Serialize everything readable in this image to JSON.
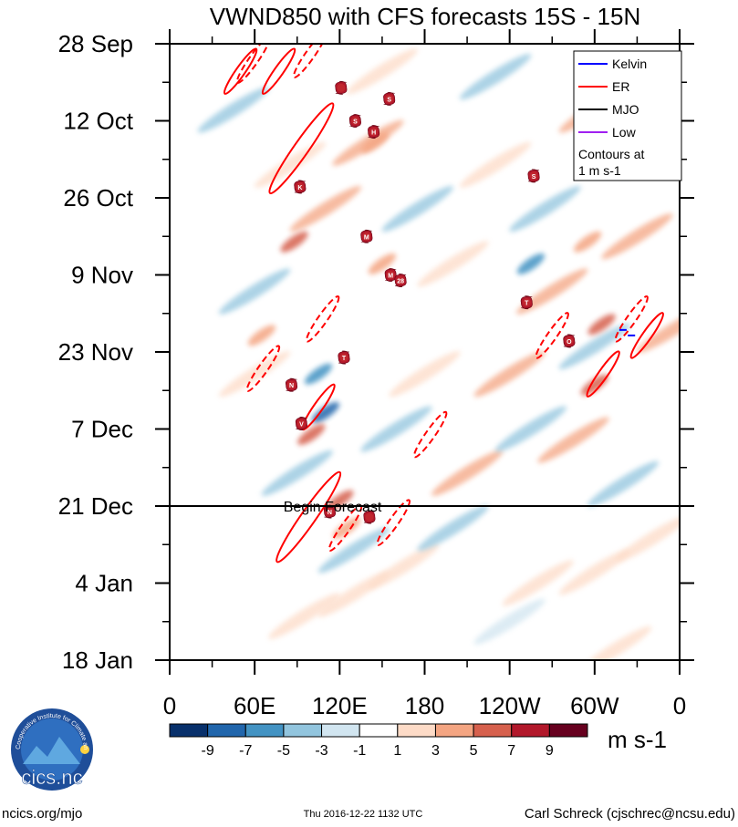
{
  "chart_data": {
    "type": "heatmap",
    "title": "VWND850 with CFS forecasts  15S - 15N",
    "x_tick_labels": [
      "0",
      "60E",
      "120E",
      "180",
      "120W",
      "60W",
      "0"
    ],
    "x_tick_values_deg": [
      0,
      60,
      120,
      180,
      240,
      300,
      360
    ],
    "xlim": [
      0,
      360
    ],
    "y_tick_labels": [
      "28 Sep",
      "12 Oct",
      "26 Oct",
      "9 Nov",
      "23 Nov",
      "7 Dec",
      "21 Dec",
      "4 Jan",
      "18 Jan"
    ],
    "y_tick_days": [
      0,
      14,
      28,
      42,
      56,
      70,
      84,
      98,
      112
    ],
    "ylim_days": [
      0,
      112
    ],
    "forecast_start_day": 84,
    "forecast_label": "Begin Forecast",
    "colorbar": {
      "unit": "m s-1",
      "tick_labels": [
        "-9",
        "-7",
        "-5",
        "-3",
        "-1",
        "1",
        "3",
        "5",
        "7",
        "9"
      ],
      "colors": [
        "#08306b",
        "#2166ac",
        "#4393c3",
        "#92c5de",
        "#d1e5f0",
        "#ffffff",
        "#fddbc7",
        "#f4a582",
        "#d6604d",
        "#b2182b",
        "#67001f"
      ]
    },
    "legend": {
      "items": [
        {
          "name": "Kelvin",
          "color": "#0000ff"
        },
        {
          "name": "ER",
          "color": "#ff0000"
        },
        {
          "name": "MJO",
          "color": "#000000"
        },
        {
          "name": "Low",
          "color": "#a020f0"
        }
      ],
      "note_line1": "Contours at",
      "note_line2": "1 m s-1"
    },
    "anomaly_streaks": [
      {
        "lon": 330,
        "day": 35,
        "value": 5
      },
      {
        "lon": 355,
        "day": 52,
        "value": 5
      },
      {
        "lon": 300,
        "day": 12,
        "value": 5
      },
      {
        "lon": 270,
        "day": 45,
        "value": 4
      },
      {
        "lon": 240,
        "day": 60,
        "value": 4
      },
      {
        "lon": 210,
        "day": 78,
        "value": 4
      },
      {
        "lon": 165,
        "day": 95,
        "value": 3
      },
      {
        "lon": 130,
        "day": 100,
        "value": 3
      },
      {
        "lon": 95,
        "day": 104,
        "value": 3
      },
      {
        "lon": 260,
        "day": 98,
        "value": 3
      },
      {
        "lon": 300,
        "day": 96,
        "value": 3
      },
      {
        "lon": 340,
        "day": 90,
        "value": 3
      },
      {
        "lon": 110,
        "day": 30,
        "value": 4
      },
      {
        "lon": 140,
        "day": 18,
        "value": 4
      },
      {
        "lon": 60,
        "day": 60,
        "value": 3
      },
      {
        "lon": 200,
        "day": 40,
        "value": 3
      },
      {
        "lon": 230,
        "day": 22,
        "value": 3
      },
      {
        "lon": 285,
        "day": 72,
        "value": 4
      },
      {
        "lon": 150,
        "day": 5,
        "value": 3
      },
      {
        "lon": 85,
        "day": 22,
        "value": 3
      },
      {
        "lon": 180,
        "day": 60,
        "value": 3
      },
      {
        "lon": 315,
        "day": 110,
        "value": 2
      },
      {
        "lon": 230,
        "day": 6,
        "value": -3
      },
      {
        "lon": 265,
        "day": 30,
        "value": -4
      },
      {
        "lon": 255,
        "day": 70,
        "value": -3
      },
      {
        "lon": 300,
        "day": 55,
        "value": -3
      },
      {
        "lon": 320,
        "day": 80,
        "value": -4
      },
      {
        "lon": 60,
        "day": 45,
        "value": -3
      },
      {
        "lon": 175,
        "day": 30,
        "value": -3
      },
      {
        "lon": 200,
        "day": 88,
        "value": -4
      },
      {
        "lon": 130,
        "day": 92,
        "value": -3
      },
      {
        "lon": 90,
        "day": 78,
        "value": -3
      },
      {
        "lon": 45,
        "day": 12,
        "value": -3
      },
      {
        "lon": 345,
        "day": 20,
        "value": -3
      },
      {
        "lon": 160,
        "day": 70,
        "value": -3
      },
      {
        "lon": 240,
        "day": 105,
        "value": -2
      }
    ],
    "strong_features": [
      {
        "lon": 110,
        "day": 67,
        "value": -7
      },
      {
        "lon": 105,
        "day": 60,
        "value": -5
      },
      {
        "lon": 100,
        "day": 71,
        "value": 7
      },
      {
        "lon": 120,
        "day": 83,
        "value": 7
      },
      {
        "lon": 125,
        "day": 88,
        "value": 5
      },
      {
        "lon": 88,
        "day": 36,
        "value": 7
      },
      {
        "lon": 150,
        "day": 40,
        "value": 5
      },
      {
        "lon": 145,
        "day": 18,
        "value": 5
      },
      {
        "lon": 300,
        "day": 62,
        "value": 7
      },
      {
        "lon": 305,
        "day": 51,
        "value": 7
      },
      {
        "lon": 295,
        "day": 36,
        "value": 5
      },
      {
        "lon": 255,
        "day": 40,
        "value": -5
      },
      {
        "lon": 65,
        "day": 53,
        "value": 5
      }
    ],
    "er_contours": [
      {
        "lon": 93,
        "day": 19,
        "dashed": false
      },
      {
        "lon": 105,
        "day": 66,
        "dashed": false
      },
      {
        "lon": 98,
        "day": 86,
        "dashed": false
      },
      {
        "lon": 306,
        "day": 60,
        "dashed": false
      },
      {
        "lon": 337,
        "day": 53,
        "dashed": false
      },
      {
        "lon": 50,
        "day": 5,
        "dashed": false
      },
      {
        "lon": 59,
        "day": 3,
        "dashed": true
      },
      {
        "lon": 77,
        "day": 5,
        "dashed": false
      },
      {
        "lon": 99,
        "day": 2,
        "dashed": true
      },
      {
        "lon": 108,
        "day": 50,
        "dashed": true
      },
      {
        "lon": 66,
        "day": 59,
        "dashed": true
      },
      {
        "lon": 124,
        "day": 88,
        "dashed": true
      },
      {
        "lon": 158,
        "day": 87,
        "dashed": true
      },
      {
        "lon": 184,
        "day": 71,
        "dashed": true
      },
      {
        "lon": 270,
        "day": 53,
        "dashed": true
      },
      {
        "lon": 326,
        "day": 50,
        "dashed": true
      }
    ],
    "kelvin_contours": [
      {
        "lon": 320,
        "day": 52
      },
      {
        "lon": 326,
        "day": 53
      }
    ],
    "cyclone_markers": [
      {
        "lon": 121,
        "day": 8,
        "code": ""
      },
      {
        "lon": 155,
        "day": 10,
        "code": "S"
      },
      {
        "lon": 131,
        "day": 14,
        "code": "S"
      },
      {
        "lon": 144,
        "day": 16,
        "code": "H"
      },
      {
        "lon": 92,
        "day": 26,
        "code": "K"
      },
      {
        "lon": 257,
        "day": 24,
        "code": "S"
      },
      {
        "lon": 139,
        "day": 35,
        "code": "M"
      },
      {
        "lon": 156,
        "day": 42,
        "code": "M"
      },
      {
        "lon": 163,
        "day": 43,
        "code": "28"
      },
      {
        "lon": 252,
        "day": 47,
        "code": "T"
      },
      {
        "lon": 282,
        "day": 54,
        "code": "O"
      },
      {
        "lon": 123,
        "day": 57,
        "code": "T"
      },
      {
        "lon": 86,
        "day": 62,
        "code": "N"
      },
      {
        "lon": 93,
        "day": 69,
        "code": "V"
      },
      {
        "lon": 113,
        "day": 85,
        "code": "N"
      },
      {
        "lon": 141,
        "day": 86,
        "code": ""
      }
    ]
  },
  "footer": {
    "left": "ncics.org/mjo",
    "center": "Thu 2016-12-22 1132 UTC",
    "right": "Carl Schreck (cjschrec@ncsu.edu)"
  },
  "logo": {
    "arc_text": "Cooperative Institute for Climate and Satellites",
    "name": "cics.nc"
  }
}
